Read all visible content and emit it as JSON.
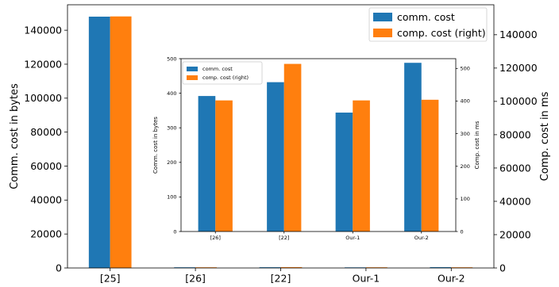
{
  "colors": {
    "comm": "#1f77b4",
    "comp": "#ff7f0e"
  },
  "chart_data": [
    {
      "type": "bar",
      "categories": [
        "[25]",
        "[26]",
        "[22]",
        "Our-1",
        "Our-2"
      ],
      "series": [
        {
          "name": "comm. cost",
          "axis": "left",
          "values": [
            148000,
            392,
            432,
            344,
            488
          ]
        },
        {
          "name": "comp. cost (right)",
          "axis": "right",
          "values": [
            151000,
            402,
            514,
            402,
            404
          ]
        }
      ],
      "ylabel": "Comm. cost in bytes",
      "ylabel_right": "Comp. cost in ms",
      "ylim": [
        0,
        155000
      ],
      "ylim_right": [
        0,
        158000
      ],
      "yticks": [
        0,
        20000,
        40000,
        60000,
        80000,
        100000,
        120000,
        140000
      ],
      "yticks_right": [
        0,
        20000,
        40000,
        60000,
        80000,
        100000,
        120000,
        140000
      ],
      "legend": "top-right",
      "grid": false
    },
    {
      "type": "bar",
      "inset": true,
      "categories": [
        "[26]",
        "[22]",
        "Our-1",
        "Our-2"
      ],
      "series": [
        {
          "name": "comm. cost",
          "axis": "left",
          "values": [
            392,
            432,
            344,
            488
          ]
        },
        {
          "name": "comp. cost (right)",
          "axis": "right",
          "values": [
            402,
            514,
            402,
            404
          ]
        }
      ],
      "ylabel": "Comm. cost in bytes",
      "ylabel_right": "Comp. cost in ms",
      "ylim": [
        0,
        500
      ],
      "ylim_right": [
        0,
        530
      ],
      "yticks": [
        0,
        100,
        200,
        300,
        400,
        500
      ],
      "yticks_right": [
        0,
        100,
        200,
        300,
        400,
        500
      ],
      "legend": "top-left",
      "grid": false
    }
  ]
}
